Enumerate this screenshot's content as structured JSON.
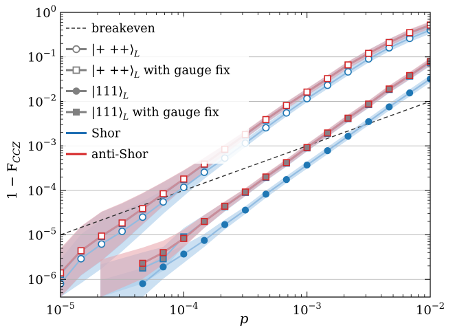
{
  "chart_data": {
    "type": "line",
    "xlabel": "p",
    "ylabel": "1 − F",
    "ylabel_sub": "CCZ",
    "xscale": "log",
    "yscale": "log",
    "xlim": [
      1e-05,
      0.01
    ],
    "ylim": [
      4e-07,
      1
    ],
    "grid": "horizontal major",
    "legend_position": "top-left",
    "x_ticks": [
      {
        "base": "10",
        "exp": "−5",
        "value": 1e-05
      },
      {
        "base": "10",
        "exp": "−4",
        "value": 0.0001
      },
      {
        "base": "10",
        "exp": "−3",
        "value": 0.001
      },
      {
        "base": "10",
        "exp": "−2",
        "value": 0.01
      }
    ],
    "y_ticks": [
      {
        "base": "10",
        "exp": "−6",
        "value": 1e-06
      },
      {
        "base": "10",
        "exp": "−5",
        "value": 1e-05
      },
      {
        "base": "10",
        "exp": "−4",
        "value": 0.0001
      },
      {
        "base": "10",
        "exp": "−3",
        "value": 0.001
      },
      {
        "base": "10",
        "exp": "−2",
        "value": 0.01
      },
      {
        "base": "10",
        "exp": "−1",
        "value": 0.1
      },
      {
        "base": "10",
        "exp": "0",
        "value": 1
      }
    ],
    "legend": [
      {
        "label": "breakeven",
        "kind": "dashed"
      },
      {
        "label": "|+ ++⟩",
        "sub": "L",
        "kind": "open-circle"
      },
      {
        "label": "|+ ++⟩",
        "sub": "L",
        "suffix": " with gauge fix",
        "kind": "open-square"
      },
      {
        "label": "|111⟩",
        "sub": "L",
        "kind": "filled-circle"
      },
      {
        "label": "|111⟩",
        "sub": "L",
        "suffix": " with gauge fix",
        "kind": "filled-square"
      },
      {
        "label": "Shor",
        "kind": "line",
        "color": "#1f6fb4"
      },
      {
        "label": "anti-Shor",
        "kind": "line",
        "color": "#d62728"
      }
    ],
    "colors": {
      "shor": "#1f77b4",
      "shor_line": "#8fbbe0",
      "shor_band": "#a9cbea",
      "anti": "#d62728",
      "anti_line": "#c98a97",
      "anti_band": "#e8a0a8",
      "dark_fill": "#8a7f86",
      "breakeven": "#333333",
      "legend_gray": "#808080"
    },
    "x": [
      1e-05,
      1.468e-05,
      2.154e-05,
      3.162e-05,
      4.642e-05,
      6.813e-05,
      0.0001,
      0.0001468,
      0.0002154,
      0.0003162,
      0.0004642,
      0.0006813,
      0.001,
      0.001468,
      0.002154,
      0.003162,
      0.004642,
      0.006813,
      0.01
    ],
    "breakeven": {
      "x": [
        1e-05,
        0.01
      ],
      "y": [
        1e-05,
        0.01
      ]
    },
    "series": [
      {
        "name": "|+ ++⟩ Shor",
        "code": "shor",
        "marker": "circle-open",
        "y": [
          8e-07,
          2.9e-06,
          6.2e-06,
          1.2e-05,
          2.5e-05,
          5.5e-05,
          0.000117,
          0.000255,
          0.00053,
          0.00115,
          0.00255,
          0.0055,
          0.0115,
          0.023,
          0.046,
          0.09,
          0.16,
          0.26,
          0.4
        ]
      },
      {
        "name": "|+ ++⟩ with gauge fix Shor",
        "code": "shor",
        "marker": "square-open",
        "y": [
          1.3e-06,
          4.3e-06,
          9.2e-06,
          1.8e-05,
          3.8e-05,
          8.2e-05,
          0.000175,
          0.00038,
          0.00082,
          0.00175,
          0.0038,
          0.008,
          0.016,
          0.032,
          0.065,
          0.12,
          0.21,
          0.34,
          0.5
        ]
      },
      {
        "name": "|+ ++⟩ with gauge fix anti-Shor",
        "code": "anti",
        "marker": "square-open",
        "y": [
          1.4e-06,
          4.4e-06,
          9.4e-06,
          1.85e-05,
          3.9e-05,
          8.4e-05,
          0.00018,
          0.00039,
          0.00084,
          0.0018,
          0.0039,
          0.0081,
          0.0162,
          0.0325,
          0.066,
          0.12,
          0.21,
          0.35,
          0.52
        ]
      },
      {
        "name": "|111⟩ Shor",
        "code": "shor",
        "marker": "circle-filled",
        "y": [
          null,
          null,
          null,
          null,
          8e-07,
          1.9e-06,
          3.7e-06,
          7.5e-06,
          1.7e-05,
          3.6e-05,
          8.2e-05,
          0.000175,
          0.00037,
          0.00078,
          0.00165,
          0.0035,
          0.0075,
          0.0155,
          0.032
        ]
      },
      {
        "name": "|111⟩ with gauge fix Shor",
        "code": "shor",
        "marker": "square-filled",
        "y": [
          null,
          null,
          null,
          null,
          1.8e-06,
          2.9e-06,
          9e-06,
          2e-05,
          4.3e-05,
          9e-05,
          0.000195,
          0.00041,
          0.0009,
          0.0019,
          0.0041,
          0.0085,
          0.0185,
          0.037,
          0.075
        ]
      },
      {
        "name": "|111⟩ with gauge fix anti-Shor",
        "code": "anti",
        "marker": "square-filled",
        "y": [
          null,
          null,
          null,
          null,
          2.3e-06,
          4e-06,
          8.3e-06,
          2e-05,
          4.4e-05,
          9.2e-05,
          0.0002,
          0.00042,
          0.00092,
          0.00195,
          0.0042,
          0.0087,
          0.019,
          0.038,
          0.078
        ]
      }
    ]
  }
}
